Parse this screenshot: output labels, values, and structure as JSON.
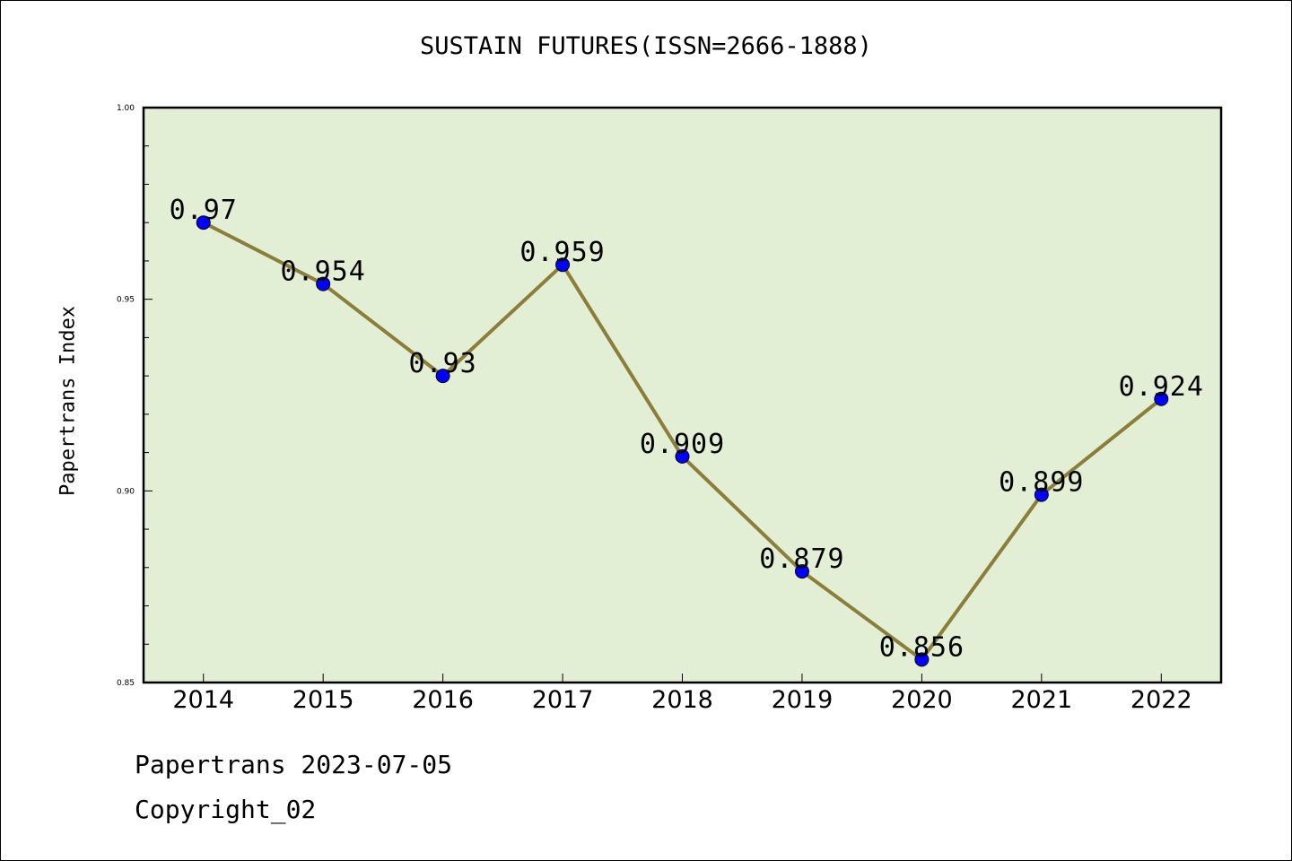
{
  "chart_data": {
    "type": "line",
    "title": "SUSTAIN FUTURES(ISSN=2666-1888)",
    "xlabel": "",
    "ylabel": "Papertrans Index",
    "categories": [
      "2014",
      "2015",
      "2016",
      "2017",
      "2018",
      "2019",
      "2020",
      "2021",
      "2022"
    ],
    "values": [
      0.97,
      0.954,
      0.93,
      0.959,
      0.909,
      0.879,
      0.856,
      0.899,
      0.924
    ],
    "data_labels": [
      "0.97",
      "0.954",
      "0.93",
      "0.959",
      "0.909",
      "0.879",
      "0.856",
      "0.899",
      "0.924"
    ],
    "ylim": [
      0.85,
      1.0
    ],
    "yticks": [
      0.85,
      0.9,
      0.95,
      1.0
    ],
    "ytick_labels": [
      "0.85",
      "0.90",
      "0.95",
      "1.00"
    ],
    "grid": false,
    "legend": "none",
    "colors": {
      "line": "#8b7d3a",
      "marker": "#0000ff",
      "plot_background": "#e2efd4"
    }
  },
  "footer": {
    "date_line": "Papertrans 2023-07-05",
    "copyright": "Copyright_02"
  }
}
